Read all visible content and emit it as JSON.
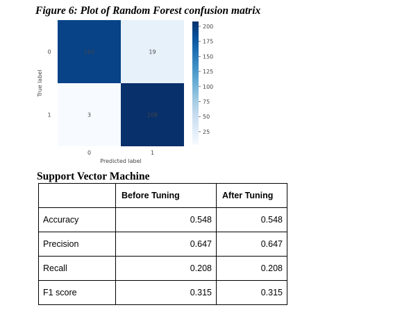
{
  "figure": {
    "caption": "Figure 6: Plot of Random Forest confusion matrix"
  },
  "chart_data": {
    "type": "heatmap",
    "title": "",
    "xlabel": "Predicted label",
    "ylabel": "True label",
    "x_categories": [
      "0",
      "1"
    ],
    "y_categories": [
      "0",
      "1"
    ],
    "matrix": [
      [
        193,
        19
      ],
      [
        3,
        208
      ]
    ],
    "colormap": "Blues",
    "colorbar": {
      "range": [
        3,
        208
      ],
      "ticks": [
        25,
        50,
        75,
        100,
        125,
        150,
        175,
        200
      ],
      "tick_labels": [
        "25",
        "50",
        "75",
        "100",
        "125",
        "150",
        "175",
        "200"
      ]
    },
    "colors": {
      "dark": "#08306b",
      "light": "#f7fbff",
      "text_on_dark": "#ffffff",
      "text_on_light": "#08306b"
    }
  },
  "section": {
    "title": "Support Vector Machine"
  },
  "table": {
    "headers": [
      "",
      "Before Tuning",
      "After Tuning"
    ],
    "rows": [
      [
        "Accuracy",
        "0.548",
        "0.548"
      ],
      [
        "Precision",
        "0.647",
        "0.647"
      ],
      [
        "Recall",
        "0.208",
        "0.208"
      ],
      [
        "F1 score",
        "0.315",
        "0.315"
      ]
    ]
  }
}
